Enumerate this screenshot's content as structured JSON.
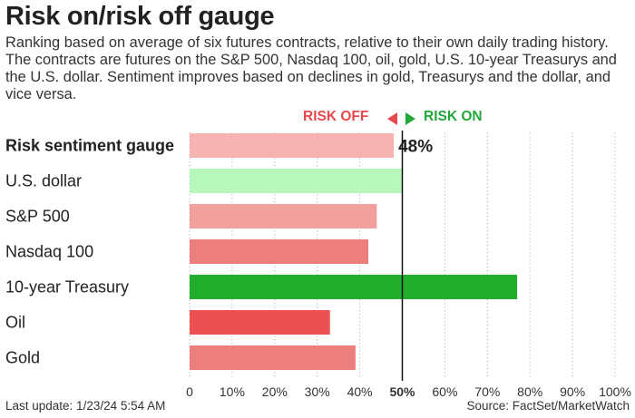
{
  "title": "Risk on/risk off gauge",
  "subtitle": "Ranking based on average of six futures contracts, relative to their own daily trading history. The contracts are futures on the S&P 500, Nasdaq 100, oil, gold, U.S. 10-year Treasurys and the U.S. dollar. Sentiment improves based on declines in gold, Treasurys and the dollar, and vice versa.",
  "legend": {
    "risk_off": "RISK OFF",
    "risk_on": "RISK ON"
  },
  "footer": {
    "last_update": "Last update: 1/23/24 5:54 AM",
    "source": "Source: FactSet/MarketWatch"
  },
  "colors": {
    "risk_on_strong": "#22ad2c",
    "risk_on_light": "#b8f7bc",
    "risk_off_strong": "#eb5052",
    "risk_off_mid": "#ec7f7d",
    "risk_off_light": "#f2a09e",
    "risk_off_pale": "#f7b3b1",
    "midline": "#111111",
    "grid": "#bbbbbb"
  },
  "chart_data": {
    "type": "bar",
    "orientation": "horizontal",
    "categories": [
      "Risk sentiment gauge",
      "U.S. dollar",
      "S&P 500",
      "Nasdaq 100",
      "10-year Treasury",
      "Oil",
      "Gold"
    ],
    "values": [
      48,
      50,
      44,
      42,
      77,
      33,
      39
    ],
    "value_label": "48%",
    "bar_colors": [
      "#f7b3b1",
      "#b8f7bc",
      "#f2a09e",
      "#ec7f7d",
      "#22ad2c",
      "#eb5052",
      "#ec7f7d"
    ],
    "xlim": [
      0,
      100
    ],
    "xticks": [
      "0",
      "10%",
      "20%",
      "30%",
      "40%",
      "50%",
      "60%",
      "70%",
      "80%",
      "90%",
      "100%"
    ],
    "xticks_values": [
      0,
      10,
      20,
      30,
      40,
      50,
      60,
      70,
      80,
      90,
      100
    ],
    "midline": 50,
    "grid": true
  }
}
